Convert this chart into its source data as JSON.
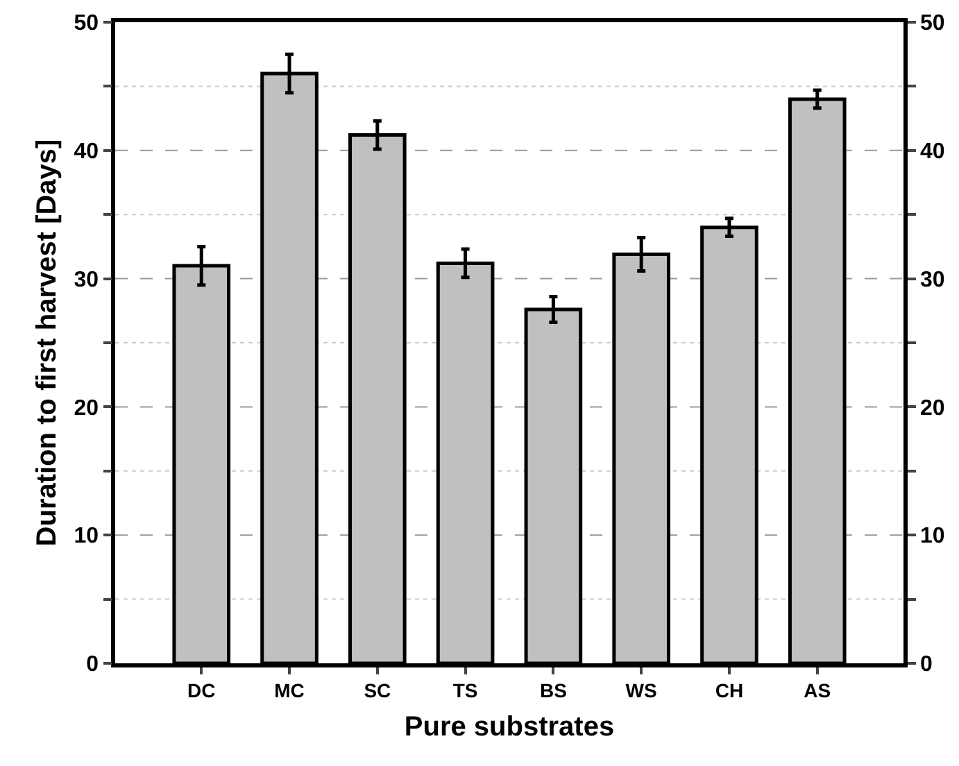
{
  "chart_data": {
    "type": "bar",
    "xlabel": "Pure substrates",
    "ylabel": "Duration to first harvest [Days]",
    "categories": [
      "DC",
      "MC",
      "SC",
      "TS",
      "BS",
      "WS",
      "CH",
      "AS"
    ],
    "series": [
      {
        "color": "#c0c0c0",
        "values": [
          31.0,
          46.0,
          41.2,
          31.2,
          27.6,
          31.9,
          34.0,
          44.0
        ],
        "errors": [
          1.5,
          1.5,
          1.1,
          1.1,
          1.0,
          1.3,
          0.7,
          0.7
        ]
      }
    ],
    "ylim": [
      0,
      50
    ],
    "yticks": [
      0,
      {
        "value": 5,
        "label": null
      },
      10,
      {
        "value": 15,
        "label": null
      },
      20,
      {
        "value": 25,
        "label": null
      },
      30,
      {
        "value": 35,
        "label": null
      },
      40,
      {
        "value": 45,
        "label": null
      },
      50
    ],
    "y2lim": [
      0,
      50
    ],
    "y2ticks": [
      0,
      {
        "value": 5,
        "label": null
      },
      10,
      {
        "value": 15,
        "label": null
      },
      20,
      {
        "value": 25,
        "label": null
      },
      30,
      {
        "value": 35,
        "label": null
      },
      40,
      {
        "value": 45,
        "label": null
      },
      50
    ],
    "grid": "y"
  }
}
